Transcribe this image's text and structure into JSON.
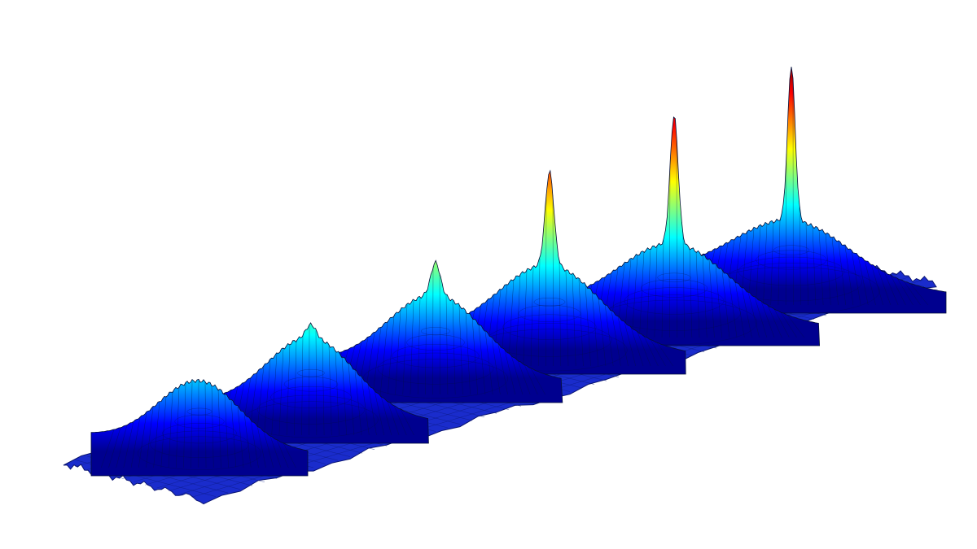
{
  "chart_data": {
    "type": "surface",
    "title": "",
    "xlabel": "",
    "ylabel": "",
    "zlabel": "",
    "axes_visible": false,
    "grid": false,
    "colormap": "jet",
    "mesh_lines": true,
    "peak_count": 6,
    "peaks": [
      {
        "relative_height": 0.29,
        "sharpness": 0.0
      },
      {
        "relative_height": 0.4,
        "sharpness": 0.15
      },
      {
        "relative_height": 0.5,
        "sharpness": 0.3
      },
      {
        "relative_height": 0.79,
        "sharpness": 0.55
      },
      {
        "relative_height": 0.92,
        "sharpness": 0.65
      },
      {
        "relative_height": 1.0,
        "sharpness": 0.72
      }
    ],
    "colors": {
      "floor": "#1a2ccc",
      "jet": [
        "#00008f",
        "#0000ff",
        "#0080ff",
        "#00ffff",
        "#80ff80",
        "#ffff00",
        "#ff8000",
        "#ff0000",
        "#800000"
      ]
    }
  }
}
